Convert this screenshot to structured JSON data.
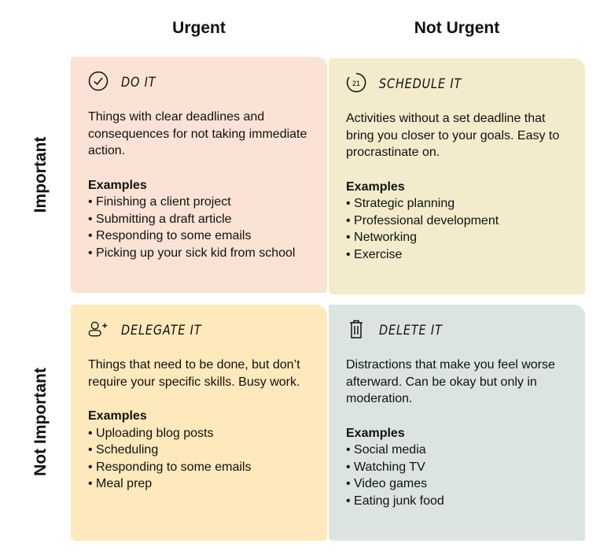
{
  "columns": [
    "Urgent",
    "Not Urgent"
  ],
  "rows": [
    "Important",
    "Not Important"
  ],
  "quadrants": [
    {
      "title": "DO IT",
      "icon": "check-circle-icon",
      "color": "#fae3d4",
      "description": "Things with clear deadlines and consequences for not taking immediate action.",
      "examples_label": "Examples",
      "examples": [
        "Finishing a client project",
        "Submitting a draft article",
        "Responding to some emails",
        "Picking up your sick kid from school"
      ]
    },
    {
      "title": "SCHEDULE IT",
      "icon": "calendar-21-icon",
      "icon_text": "21",
      "color": "#f3ebcc",
      "description": "Activities without a set deadline that bring you closer to your goals. Easy to procrastinate on.",
      "examples_label": "Examples",
      "examples": [
        "Strategic planning",
        "Professional development",
        "Networking",
        "Exercise"
      ]
    },
    {
      "title": "DELEGATE IT",
      "icon": "add-user-icon",
      "color": "#fde9bb",
      "description": "Things that need to be done, but don’t require your specific skills. Busy work.",
      "examples_label": "Examples",
      "examples": [
        "Uploading blog posts",
        "Scheduling",
        "Responding to some emails",
        "Meal prep"
      ]
    },
    {
      "title": "DELETE IT",
      "icon": "trash-icon",
      "color": "#dce4e3",
      "description": "Distractions that make you feel worse afterward. Can be okay but only in moderation.",
      "examples_label": "Examples",
      "examples": [
        "Social media",
        "Watching TV",
        "Video games",
        "Eating junk food"
      ]
    }
  ]
}
